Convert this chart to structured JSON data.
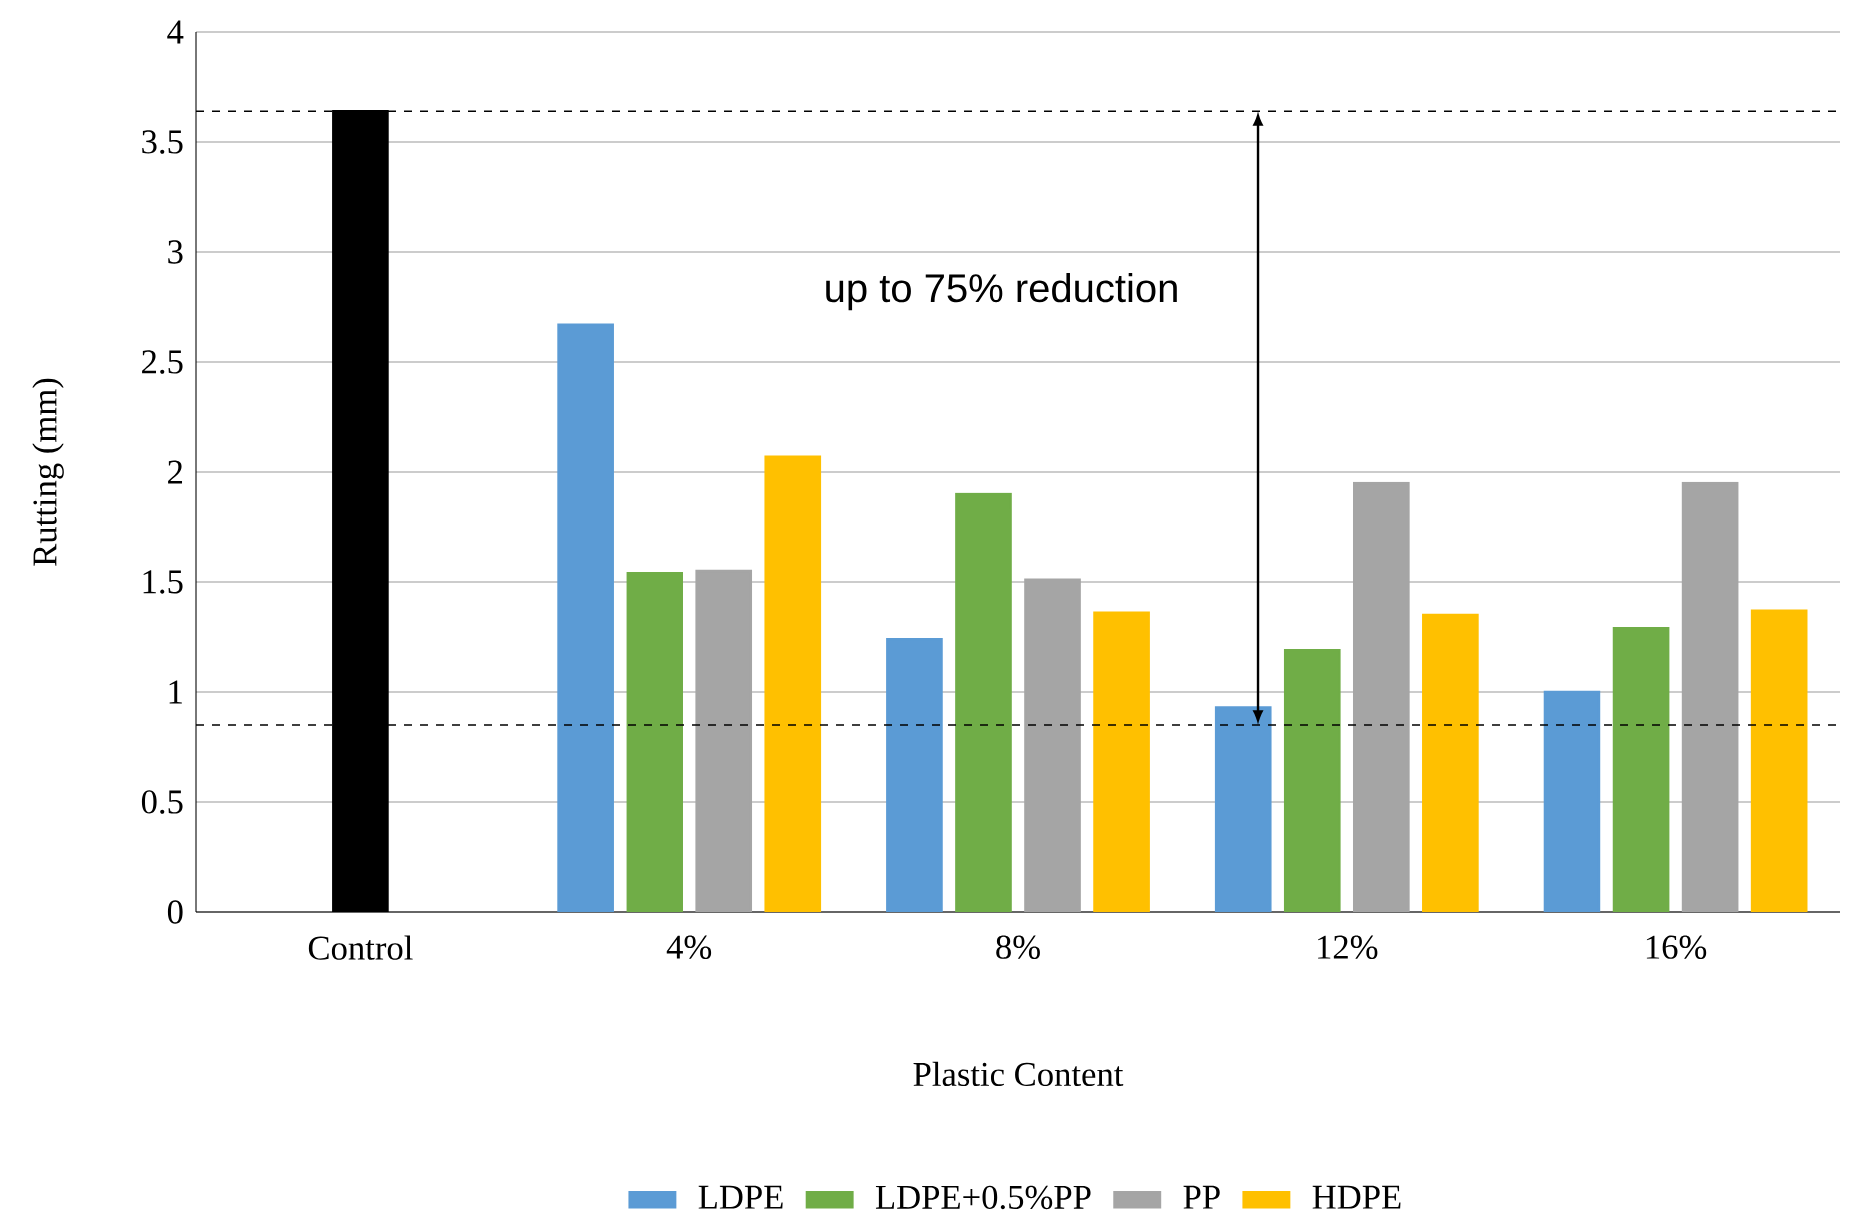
{
  "chart_data": {
    "type": "bar",
    "xlabel": "Plastic Content",
    "ylabel": "Rutting (mm)",
    "categories": [
      "Control",
      "4%",
      "8%",
      "12%",
      "16%"
    ],
    "series": [
      {
        "color": "#000000",
        "values": [
          3.64,
          null,
          null,
          null,
          null
        ]
      },
      {
        "name": "LDPE",
        "color": "#5b9bd5",
        "values": [
          null,
          2.67,
          1.24,
          0.93,
          1.0
        ]
      },
      {
        "name": "LDPE+0.5%PP",
        "color": "#70ad47",
        "values": [
          null,
          1.54,
          1.9,
          1.19,
          1.29
        ]
      },
      {
        "name": "PP",
        "color": "#a5a5a5",
        "values": [
          null,
          1.55,
          1.51,
          1.95,
          1.95
        ]
      },
      {
        "name": "HDPE",
        "color": "#ffc000",
        "values": [
          null,
          2.07,
          1.36,
          1.35,
          1.37
        ]
      }
    ],
    "ylim": [
      0,
      4
    ],
    "yticks": [
      0,
      0.5,
      1,
      1.5,
      2,
      2.5,
      3,
      3.5,
      4
    ],
    "grid": "y",
    "legend": "bottom",
    "ref_lines": [
      {
        "axis": "y",
        "value": 3.64,
        "line_style": "dashed",
        "color": "#000000"
      },
      {
        "axis": "y",
        "value": 0.85,
        "line_style": "dashed",
        "color": "#000000"
      }
    ],
    "annotations": [
      "up to 75% reduction"
    ]
  }
}
